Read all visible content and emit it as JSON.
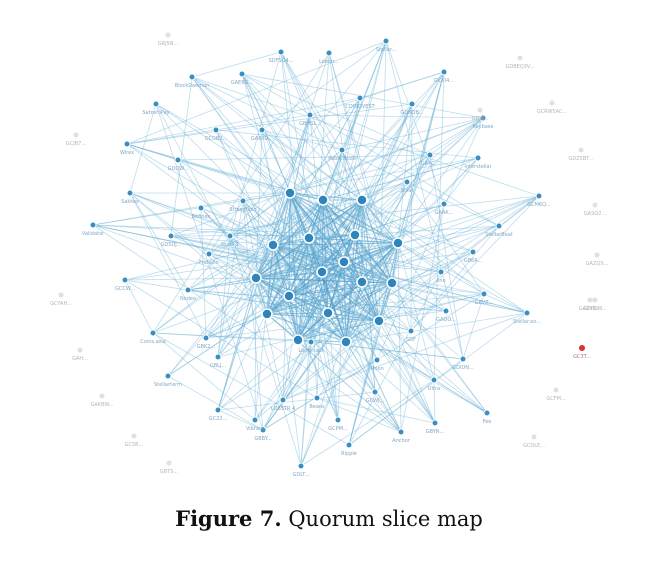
{
  "figure": {
    "number_label": "Figure 7.",
    "title": "Quorum slice map"
  },
  "colors": {
    "node": "#3a8fc2",
    "edge": "#6db4d8",
    "isolated_node": "#e4e0d8",
    "highlighted_node": "#d9342b"
  },
  "graph": {
    "nodes": [
      {
        "id": "c1",
        "label": "",
        "group": "core"
      },
      {
        "id": "c2",
        "label": "",
        "group": "core"
      },
      {
        "id": "c3",
        "label": "",
        "group": "core"
      },
      {
        "id": "c4",
        "label": "",
        "group": "core"
      },
      {
        "id": "c5",
        "label": "",
        "group": "core"
      },
      {
        "id": "c6",
        "label": "",
        "group": "core"
      },
      {
        "id": "c7",
        "label": "",
        "group": "core"
      },
      {
        "id": "c8",
        "label": "",
        "group": "core"
      },
      {
        "id": "c9",
        "label": "",
        "group": "core"
      },
      {
        "id": "c10",
        "label": "",
        "group": "core"
      },
      {
        "id": "c11",
        "label": "",
        "group": "core"
      },
      {
        "id": "c12",
        "label": "",
        "group": "core"
      },
      {
        "id": "c13",
        "label": "",
        "group": "core"
      },
      {
        "id": "c14",
        "label": "",
        "group": "core"
      },
      {
        "id": "c15",
        "label": "",
        "group": "core"
      },
      {
        "id": "c16",
        "label": "",
        "group": "core"
      },
      {
        "id": "c17",
        "label": "",
        "group": "core"
      },
      {
        "id": "c18",
        "label": "",
        "group": "core"
      },
      {
        "id": "o1",
        "label": "SDFSG4...",
        "group": "outer"
      },
      {
        "id": "o2",
        "label": "Stellar...",
        "group": "outer"
      },
      {
        "id": "o3",
        "label": "Lobstr...",
        "group": "outer"
      },
      {
        "id": "o4",
        "label": "GAE6G...",
        "group": "outer"
      },
      {
        "id": "o5",
        "label": "BlockDaemon",
        "group": "outer"
      },
      {
        "id": "o6",
        "label": "GCKI4...",
        "group": "outer"
      },
      {
        "id": "o7",
        "label": "SatoshiPay",
        "group": "outer"
      },
      {
        "id": "o8",
        "label": "COINQVEST",
        "group": "outer"
      },
      {
        "id": "o9",
        "label": "GDXQB...",
        "group": "outer"
      },
      {
        "id": "o10",
        "label": "Keybase",
        "group": "outer"
      },
      {
        "id": "o11",
        "label": "GCGB2...",
        "group": "outer"
      },
      {
        "id": "o12",
        "label": "GARYG...",
        "group": "outer"
      },
      {
        "id": "o13",
        "label": "GBHSL...",
        "group": "outer"
      },
      {
        "id": "o14",
        "label": "Wirex",
        "group": "outer"
      },
      {
        "id": "o15",
        "label": "GDQW...",
        "group": "outer"
      },
      {
        "id": "o16",
        "label": "PublicNode",
        "group": "outer"
      },
      {
        "id": "o17",
        "label": "GB4C...",
        "group": "outer"
      },
      {
        "id": "o18",
        "label": "Interstellar",
        "group": "outer"
      },
      {
        "id": "o19",
        "label": "Sakkex",
        "group": "outer"
      },
      {
        "id": "o20",
        "label": "Solar",
        "group": "outer"
      },
      {
        "id": "o21",
        "label": "GCM6Q...",
        "group": "outer"
      },
      {
        "id": "o22",
        "label": "Bitfinex",
        "group": "outer"
      },
      {
        "id": "o23",
        "label": "Stronghold",
        "group": "outer"
      },
      {
        "id": "o24",
        "label": "GAAK...",
        "group": "outer"
      },
      {
        "id": "o25",
        "label": "Validator",
        "group": "outer"
      },
      {
        "id": "o26",
        "label": "GD5DJ...",
        "group": "outer"
      },
      {
        "id": "o27",
        "label": "StellarBeat",
        "group": "outer"
      },
      {
        "id": "o28",
        "label": "Franklin",
        "group": "outer"
      },
      {
        "id": "o29",
        "label": "GB6R...",
        "group": "outer"
      },
      {
        "id": "o30",
        "label": "GCCW...",
        "group": "outer"
      },
      {
        "id": "o31",
        "label": "Nodeo",
        "group": "outer"
      },
      {
        "id": "o32",
        "label": "eno",
        "group": "outer"
      },
      {
        "id": "o33",
        "label": "GBVZ...",
        "group": "outer"
      },
      {
        "id": "o34",
        "label": "GAOO...",
        "group": "outer"
      },
      {
        "id": "o35",
        "label": "Stellar.ex...",
        "group": "outer"
      },
      {
        "id": "o36",
        "label": "Coins.asia",
        "group": "outer"
      },
      {
        "id": "o37",
        "label": "SDF",
        "group": "outer"
      },
      {
        "id": "o38",
        "label": "GBLJ...",
        "group": "outer"
      },
      {
        "id": "o39",
        "label": "Lumenaut",
        "group": "outer"
      },
      {
        "id": "o40",
        "label": "Moon",
        "group": "outer"
      },
      {
        "id": "o41",
        "label": "GDIDN...",
        "group": "outer"
      },
      {
        "id": "o42",
        "label": "Stellarterm",
        "group": "outer"
      },
      {
        "id": "o43",
        "label": "GBK2...",
        "group": "outer"
      },
      {
        "id": "o44",
        "label": "Ultra",
        "group": "outer"
      },
      {
        "id": "o45",
        "label": "GCWJ...",
        "group": "outer"
      },
      {
        "id": "o46",
        "label": "Beans",
        "group": "outer"
      },
      {
        "id": "o47",
        "label": "Vibrant",
        "group": "outer"
      },
      {
        "id": "o48",
        "label": "GC22...",
        "group": "outer"
      },
      {
        "id": "o49",
        "label": "Fee",
        "group": "outer"
      },
      {
        "id": "o50",
        "label": "LOBSTR 4",
        "group": "outer"
      },
      {
        "id": "o51",
        "label": "GBYN...",
        "group": "outer"
      },
      {
        "id": "o52",
        "label": "Anchor",
        "group": "outer"
      },
      {
        "id": "o53",
        "label": "Ripple",
        "group": "outer"
      },
      {
        "id": "o54",
        "label": "GDLT...",
        "group": "outer"
      },
      {
        "id": "o55",
        "label": "GBBY...",
        "group": "outer"
      },
      {
        "id": "o56",
        "label": "Node 1",
        "group": "outer"
      },
      {
        "id": "o57",
        "label": "GCPM...",
        "group": "outer"
      },
      {
        "id": "i1",
        "label": "GRJ5N...",
        "group": "isolated"
      },
      {
        "id": "i2",
        "label": "GDBEQ3V...",
        "group": "isolated"
      },
      {
        "id": "i3",
        "label": "GCRW5AC...",
        "group": "isolated"
      },
      {
        "id": "i4",
        "label": "GCJB7...",
        "group": "isolated"
      },
      {
        "id": "i5",
        "label": "GDZ5BT...",
        "group": "isolated"
      },
      {
        "id": "i6",
        "label": "GASQ2...",
        "group": "isolated"
      },
      {
        "id": "i7",
        "label": "GAZQ5...",
        "group": "isolated"
      },
      {
        "id": "i8",
        "label": "GCYAH...",
        "group": "isolated"
      },
      {
        "id": "i9",
        "label": "GAXYD...",
        "group": "isolated"
      },
      {
        "id": "i10",
        "label": "GAH...",
        "group": "isolated"
      },
      {
        "id": "i11",
        "label": "GAKBW...",
        "group": "isolated"
      },
      {
        "id": "i12",
        "label": "GCFM...",
        "group": "isolated"
      },
      {
        "id": "i13",
        "label": "GCDLE...",
        "group": "isolated"
      },
      {
        "id": "i14",
        "label": "GCSB...",
        "group": "isolated"
      },
      {
        "id": "i15",
        "label": "GBTS...",
        "group": "isolated"
      },
      {
        "id": "i16",
        "label": "GDW...",
        "group": "isolated"
      },
      {
        "id": "i17",
        "label": "GDPOM...",
        "group": "isolated"
      },
      {
        "id": "h1",
        "label": "GC3T...",
        "group": "highlight"
      }
    ]
  }
}
